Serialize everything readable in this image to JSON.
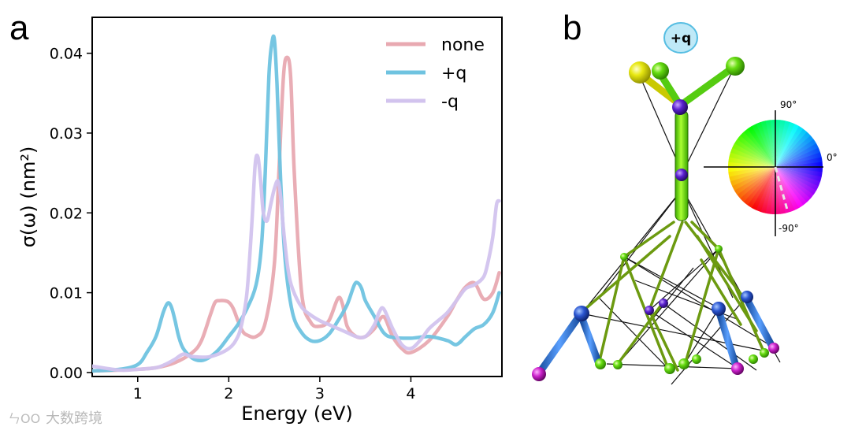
{
  "panel_a": {
    "letter": "a"
  },
  "panel_b": {
    "letter": "b",
    "charge_badge": "+q",
    "wheel": {
      "label_top": "90°",
      "label_right": "0°",
      "label_bottom": "-90°"
    }
  },
  "watermark": "大数跨境",
  "chart_data": {
    "type": "line",
    "title": "",
    "xlabel": "Energy (eV)",
    "ylabel": "σ(ω) (nm²)",
    "xlim": [
      0.5,
      5.0
    ],
    "ylim": [
      -0.0005,
      0.0445
    ],
    "xticks": [
      1,
      2,
      3,
      4
    ],
    "xtick_labels": [
      "1",
      "2",
      "3",
      "4"
    ],
    "yticks": [
      0.0,
      0.01,
      0.02,
      0.03,
      0.04
    ],
    "ytick_labels": [
      "0.00",
      "0.01",
      "0.02",
      "0.03",
      "0.04"
    ],
    "grid": false,
    "legend_position": "top-right",
    "series": [
      {
        "name": "none",
        "color": "#e8a9b1",
        "x": [
          0.5,
          0.8,
          1.0,
          1.2,
          1.4,
          1.6,
          1.7,
          1.8,
          1.85,
          1.9,
          1.95,
          2.0,
          2.05,
          2.1,
          2.15,
          2.2,
          2.3,
          2.4,
          2.5,
          2.55,
          2.6,
          2.64,
          2.68,
          2.72,
          2.8,
          2.9,
          3.0,
          3.1,
          3.2,
          3.25,
          3.3,
          3.4,
          3.5,
          3.6,
          3.7,
          3.8,
          3.9,
          4.0,
          4.2,
          4.4,
          4.5,
          4.6,
          4.7,
          4.8,
          4.9,
          4.97
        ],
        "y": [
          0.0002,
          0.0003,
          0.0004,
          0.0006,
          0.0012,
          0.0025,
          0.004,
          0.0073,
          0.0088,
          0.009,
          0.009,
          0.0088,
          0.008,
          0.0065,
          0.0052,
          0.0047,
          0.0045,
          0.0062,
          0.0135,
          0.025,
          0.037,
          0.0395,
          0.037,
          0.025,
          0.01,
          0.0063,
          0.0058,
          0.0065,
          0.0093,
          0.0085,
          0.0058,
          0.0045,
          0.0045,
          0.0055,
          0.007,
          0.0045,
          0.003,
          0.0025,
          0.004,
          0.007,
          0.009,
          0.0107,
          0.0112,
          0.0092,
          0.01,
          0.0125
        ]
      },
      {
        "name": "+q",
        "color": "#6fc3e0",
        "x": [
          0.5,
          0.8,
          1.0,
          1.1,
          1.2,
          1.28,
          1.33,
          1.37,
          1.41,
          1.45,
          1.5,
          1.6,
          1.7,
          1.8,
          1.9,
          2.0,
          2.1,
          2.2,
          2.3,
          2.36,
          2.4,
          2.44,
          2.47,
          2.5,
          2.53,
          2.57,
          2.62,
          2.7,
          2.8,
          2.9,
          3.0,
          3.1,
          3.2,
          3.3,
          3.38,
          3.42,
          3.46,
          3.5,
          3.6,
          3.7,
          3.8,
          4.0,
          4.2,
          4.4,
          4.5,
          4.6,
          4.7,
          4.8,
          4.9,
          4.97
        ],
        "y": [
          0.0002,
          0.0004,
          0.001,
          0.0025,
          0.0045,
          0.0075,
          0.0087,
          0.0082,
          0.0065,
          0.0045,
          0.003,
          0.0018,
          0.0015,
          0.002,
          0.003,
          0.0045,
          0.006,
          0.008,
          0.011,
          0.016,
          0.025,
          0.037,
          0.041,
          0.0418,
          0.036,
          0.024,
          0.014,
          0.0075,
          0.005,
          0.004,
          0.004,
          0.0048,
          0.0065,
          0.0085,
          0.011,
          0.0112,
          0.0105,
          0.009,
          0.007,
          0.005,
          0.0044,
          0.0043,
          0.0045,
          0.004,
          0.0035,
          0.0045,
          0.0055,
          0.006,
          0.0075,
          0.01
        ]
      },
      {
        "name": "-q",
        "color": "#d2c3ee",
        "x": [
          0.5,
          0.8,
          1.0,
          1.2,
          1.3,
          1.4,
          1.5,
          1.6,
          1.8,
          2.0,
          2.1,
          2.15,
          2.2,
          2.25,
          2.29,
          2.32,
          2.35,
          2.38,
          2.42,
          2.46,
          2.5,
          2.54,
          2.57,
          2.6,
          2.65,
          2.7,
          2.8,
          2.9,
          3.0,
          3.1,
          3.2,
          3.3,
          3.4,
          3.5,
          3.6,
          3.65,
          3.7,
          3.8,
          3.9,
          4.0,
          4.1,
          4.2,
          4.3,
          4.4,
          4.5,
          4.6,
          4.7,
          4.8,
          4.85,
          4.9,
          4.94,
          4.97
        ],
        "y": [
          0.0008,
          0.0003,
          0.0004,
          0.0006,
          0.001,
          0.0016,
          0.0023,
          0.002,
          0.002,
          0.003,
          0.0045,
          0.0065,
          0.01,
          0.018,
          0.026,
          0.027,
          0.024,
          0.02,
          0.019,
          0.021,
          0.023,
          0.024,
          0.022,
          0.018,
          0.013,
          0.0105,
          0.0082,
          0.0072,
          0.0065,
          0.006,
          0.0055,
          0.005,
          0.0045,
          0.0045,
          0.006,
          0.0075,
          0.008,
          0.0055,
          0.0035,
          0.003,
          0.004,
          0.0055,
          0.0065,
          0.0075,
          0.009,
          0.0105,
          0.011,
          0.012,
          0.014,
          0.017,
          0.021,
          0.0215
        ]
      }
    ]
  }
}
